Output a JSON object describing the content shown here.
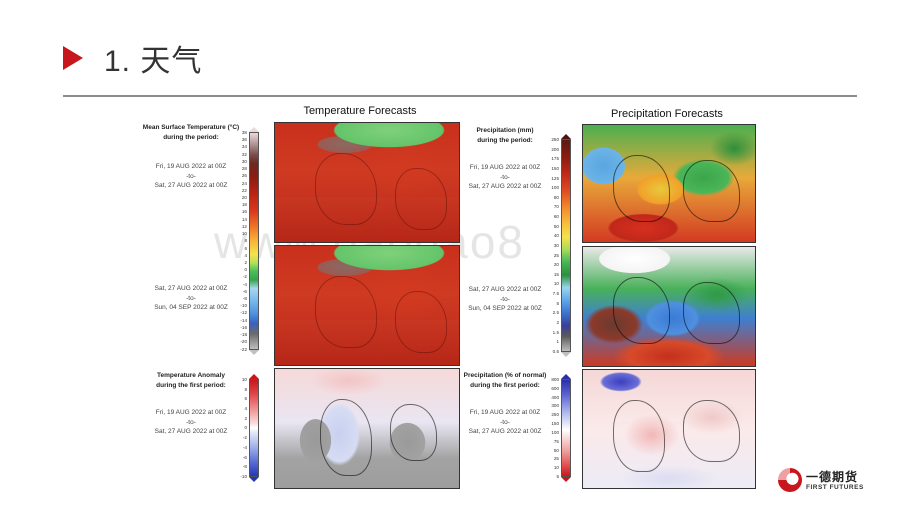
{
  "slide": {
    "title": "1. 天气",
    "watermark": "www.baogao8"
  },
  "temperature": {
    "panel_title": "Temperature Forecasts",
    "legend_title": "Mean Surface Temperature (°C)\nduring the period:",
    "period1": [
      "Fri, 19 AUG 2022 at 00Z",
      "-to-",
      "Sat, 27 AUG 2022 at 00Z"
    ],
    "period2": [
      "Sat, 27 AUG 2022 at 00Z",
      "-to-",
      "Sun, 04 SEP 2022 at 00Z"
    ],
    "ticks": [
      "38",
      "36",
      "34",
      "32",
      "30",
      "28",
      "26",
      "24",
      "22",
      "20",
      "18",
      "16",
      "14",
      "12",
      "10",
      "8",
      "6",
      "4",
      "2",
      "0",
      "-2",
      "-4",
      "-6",
      "-8",
      "-10",
      "-12",
      "-14",
      "-16",
      "-18",
      "-20",
      "-22"
    ]
  },
  "precipitation": {
    "panel_title": "Precipitation Forecasts",
    "legend_title": "Precipitation (mm)\nduring the period:",
    "period1": [
      "Fri, 19 AUG 2022 at 00Z",
      "-to-",
      "Sat, 27 AUG 2022 at 00Z"
    ],
    "period2": [
      "Sat, 27 AUG 2022 at 00Z",
      "-to-",
      "Sun, 04 SEP 2022 at 00Z"
    ],
    "ticks": [
      "250",
      "200",
      "175",
      "150",
      "125",
      "100",
      "80",
      "70",
      "60",
      "50",
      "40",
      "30",
      "25",
      "20",
      "15",
      "10",
      "7.5",
      "5",
      "2.5",
      "2",
      "1.5",
      "1",
      "0.5"
    ]
  },
  "temp_anomaly": {
    "legend_title": "Temperature Anomaly\nduring the first period:",
    "period": [
      "Fri, 19 AUG 2022 at 00Z",
      "-to-",
      "Sat, 27 AUG 2022 at 00Z"
    ],
    "ticks": [
      "10",
      "8",
      "6",
      "4",
      "2",
      "0",
      "-2",
      "-4",
      "-6",
      "-8",
      "-10"
    ]
  },
  "precip_anomaly": {
    "legend_title": "Precipitation (% of normal)\nduring the first period:",
    "period": [
      "Fri, 19 AUG 2022 at 00Z",
      "-to-",
      "Sat, 27 AUG 2022 at 00Z"
    ],
    "ticks": [
      "800",
      "600",
      "400",
      "300",
      "250",
      "150",
      "100",
      "75",
      "50",
      "25",
      "10",
      "5"
    ]
  },
  "logo": {
    "cn": "一德期货",
    "en": "FIRST FUTURES"
  },
  "colors": {
    "accent": "#c8161d",
    "rule": "#8c8c8c"
  }
}
